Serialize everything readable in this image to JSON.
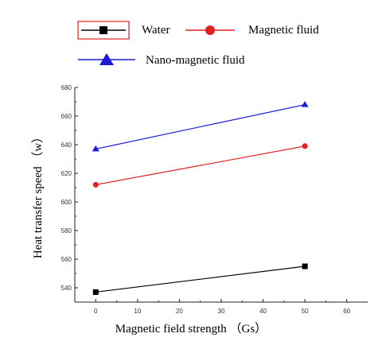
{
  "chart_data": {
    "type": "line",
    "title": "",
    "xlabel": "Magnetic field strength （Gs）",
    "ylabel": "Heat transfer speed （w）",
    "xlim": [
      -5,
      65
    ],
    "ylim": [
      530,
      680
    ],
    "x_ticks": [
      "0",
      "10",
      "20",
      "30",
      "40",
      "50",
      "60"
    ],
    "y_ticks": [
      "540",
      "560",
      "580",
      "600",
      "620",
      "640",
      "660",
      "680"
    ],
    "grid": false,
    "legend_position": "top",
    "series": [
      {
        "name": "Water",
        "color": "#000000",
        "marker": "square",
        "x": [
          0,
          50
        ],
        "y": [
          537,
          555
        ]
      },
      {
        "name": "Magnetic fluid",
        "color": "#e02020",
        "marker": "circle",
        "x": [
          0,
          50
        ],
        "y": [
          612,
          639
        ]
      },
      {
        "name": "Nano-magnetic fluid",
        "color": "#1a1ad6",
        "marker": "triangle",
        "x": [
          0,
          50
        ],
        "y": [
          637,
          668
        ]
      }
    ]
  }
}
